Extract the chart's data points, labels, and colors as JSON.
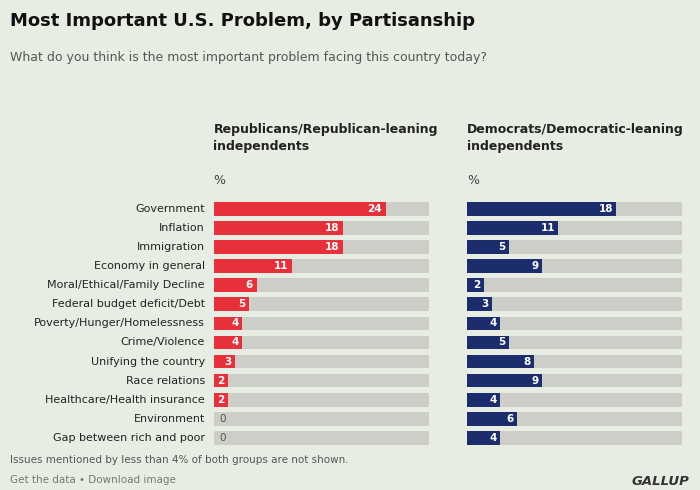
{
  "title": "Most Important U.S. Problem, by Partisanship",
  "subtitle": "What do you think is the most important problem facing this country today?",
  "categories": [
    "Government",
    "Inflation",
    "Immigration",
    "Economy in general",
    "Moral/Ethical/Family Decline",
    "Federal budget deficit/Debt",
    "Poverty/Hunger/Homelessness",
    "Crime/Violence",
    "Unifying the country",
    "Race relations",
    "Healthcare/Health insurance",
    "Environment",
    "Gap between rich and poor"
  ],
  "rep_values": [
    24,
    18,
    18,
    11,
    6,
    5,
    4,
    4,
    3,
    2,
    2,
    0,
    0
  ],
  "dem_values": [
    18,
    11,
    5,
    9,
    2,
    3,
    4,
    5,
    8,
    9,
    4,
    6,
    4
  ],
  "rep_color": "#E8303A",
  "dem_color": "#1C2D6E",
  "rep_label": "Republicans/Republican-leaning\nindependents",
  "dem_label": "Democrats/Democratic-leaning\nindependents",
  "pct_label": "%",
  "footnote": "Issues mentioned by less than 4% of both groups are not shown.",
  "source_left": "Get the data • Download image",
  "source_right": "GALLUP",
  "background_color": "#E8EDE3",
  "bar_bg_color": "#CECEC8",
  "bar_height": 0.72,
  "xlim_rep": [
    0,
    30
  ],
  "xlim_dem": [
    0,
    26
  ],
  "title_fontsize": 13,
  "subtitle_fontsize": 9,
  "label_fontsize": 8,
  "bar_label_fontsize": 7.5,
  "header_fontsize": 9
}
